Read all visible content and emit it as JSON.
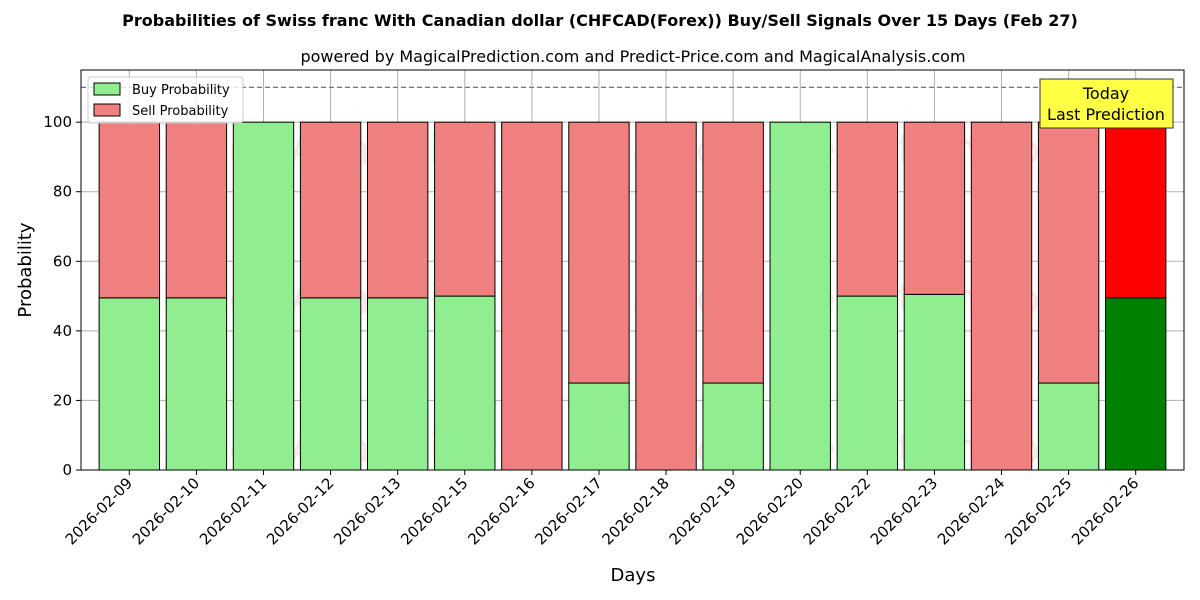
{
  "chart_data": {
    "type": "bar",
    "stacked": true,
    "title": "Probabilities of Swiss franc With Canadian dollar (CHFCAD(Forex)) Buy/Sell Signals Over 15 Days (Feb 27)",
    "subtitle": "powered by MagicalPrediction.com and Predict-Price.com and MagicalAnalysis.com",
    "xlabel": "Days",
    "ylabel": "Probability",
    "ylim": [
      0,
      115
    ],
    "yticks": [
      0,
      20,
      40,
      60,
      80,
      100
    ],
    "grid": true,
    "legend_position": "top-left",
    "reference_line": 110,
    "categories": [
      "2026-02-09",
      "2026-02-10",
      "2026-02-11",
      "2026-02-12",
      "2026-02-13",
      "2026-02-15",
      "2026-02-16",
      "2026-02-17",
      "2026-02-18",
      "2026-02-19",
      "2026-02-20",
      "2026-02-22",
      "2026-02-23",
      "2026-02-24",
      "2026-02-25",
      "2026-02-26"
    ],
    "series": [
      {
        "name": "Buy Probability",
        "color": "#90ee90",
        "highlight_color": "#008000",
        "values": [
          49.5,
          49.5,
          100,
          49.5,
          49.5,
          50,
          0,
          25,
          0,
          25,
          100,
          50,
          50.5,
          0,
          25,
          49.5
        ]
      },
      {
        "name": "Sell Probability",
        "color": "#f08080",
        "highlight_color": "#ff0000",
        "values": [
          50.5,
          50.5,
          0,
          50.5,
          50.5,
          50,
          100,
          75,
          100,
          75,
          0,
          50,
          49.5,
          100,
          75,
          50.5
        ]
      }
    ],
    "annotation": {
      "line1": "Today",
      "line2": "Last Prediction",
      "color": "#ffff44"
    },
    "watermarks": [
      "MagicalAnalysis.com",
      "Magical Prediction.com"
    ]
  }
}
